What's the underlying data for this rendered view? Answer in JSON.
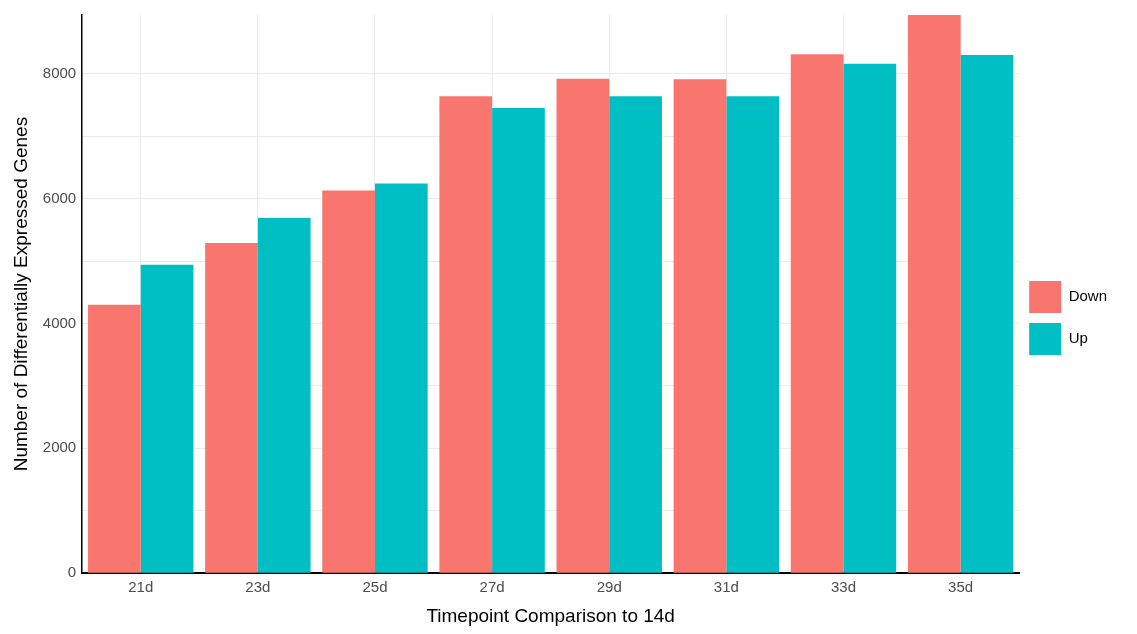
{
  "chart_data": {
    "type": "bar",
    "xlabel": "Timepoint Comparison to 14d",
    "ylabel": "Number of Differentially Expressed Genes",
    "categories": [
      "21d",
      "23d",
      "25d",
      "27d",
      "29d",
      "31d",
      "33d",
      "35d"
    ],
    "series": [
      {
        "name": "Down",
        "color": "#f8766d",
        "values": [
          4300,
          5290,
          6130,
          7640,
          7920,
          7910,
          8310,
          8940
        ]
      },
      {
        "name": "Up",
        "color": "#00bfc4",
        "values": [
          4940,
          5690,
          6240,
          7450,
          7640,
          7640,
          8160,
          8300
        ]
      }
    ],
    "ylim": [
      0,
      8940
    ],
    "yticks": [
      0,
      {
        "value": 1000,
        "label": null
      },
      2000,
      {
        "value": 3000,
        "label": null
      },
      4000,
      {
        "value": 5000,
        "label": null
      },
      6000,
      {
        "value": 7000,
        "label": null
      },
      8000
    ],
    "grid": true,
    "legend": "right"
  }
}
